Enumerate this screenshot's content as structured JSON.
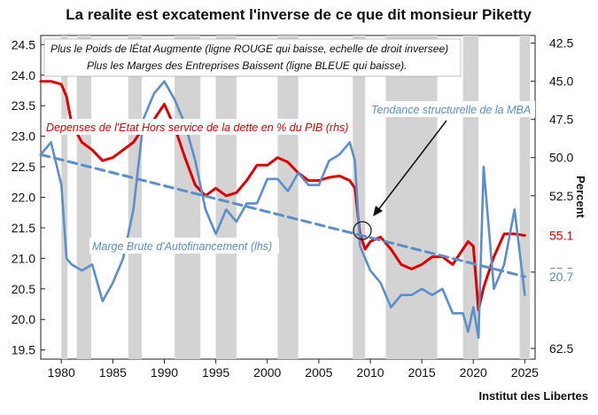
{
  "chart_data": {
    "type": "line",
    "title": "La realite est excatement l'inverse de ce que dit monsieur Piketty",
    "annotation_top_1": "Plus le Poids de lÉtat Augmente (ligne ROUGE qui baisse, echelle de droit inversee)",
    "annotation_top_2": "Plus les Marges des Entreprises Baissent (ligne BLEUE qui baisse).",
    "trend_label": "Tendance structurelle de la MBA",
    "ylabel_right": "Percent",
    "source": "Institut des Libertes",
    "x_ticks": [
      "1980",
      "1985",
      "1990",
      "1995",
      "2000",
      "2005",
      "2010",
      "2015",
      "2020",
      "2025"
    ],
    "y_left_ticks": [
      "24.5",
      "24.0",
      "23.5",
      "23.0",
      "22.5",
      "22.0",
      "21.5",
      "21.0",
      "20.5",
      "20.0",
      "19.5"
    ],
    "y_right_ticks": [
      "42.5",
      "45.0",
      "47.5",
      "50.0",
      "52.5",
      "",
      "57.5",
      "",
      "62.5"
    ],
    "xlim": [
      1978,
      2026
    ],
    "ylim_left": [
      19.35,
      24.65
    ],
    "ylim_right_inverted": [
      42.0,
      63.2
    ],
    "last_value_badges": [
      {
        "text": "55.1",
        "color": "#e00000",
        "value": 55.1
      },
      {
        "text": "20.7",
        "color": "#5b8fc9",
        "value": 20.7
      }
    ],
    "recessions": [
      [
        1980.0,
        1980.6
      ],
      [
        1981.5,
        1982.9
      ],
      [
        1986.5,
        1987.8
      ],
      [
        1991.0,
        1993.5
      ],
      [
        1995.0,
        1997.0
      ],
      [
        2001.0,
        2003.0
      ],
      [
        2008.3,
        2009.5
      ],
      [
        2011.5,
        2016.5
      ],
      [
        2019.0,
        2020.5
      ],
      [
        2024.5,
        2025.5
      ]
    ],
    "series": [
      {
        "name": "Depenses de l'Etat Hors service de la dette en % du PIB (rhs)",
        "axis": "right",
        "color": "#e00000",
        "x": [
          1978,
          1979,
          1980,
          1980.5,
          1981,
          1982,
          1983,
          1984,
          1985,
          1986,
          1987,
          1988,
          1989,
          1990,
          1991,
          1992,
          1993,
          1994,
          1995,
          1996,
          1997,
          1998,
          1999,
          2000,
          2001,
          2002,
          2003,
          2004,
          2005,
          2006,
          2007,
          2008,
          2008.5,
          2009,
          2009.5,
          2010,
          2011,
          2012,
          2013,
          2014,
          2015,
          2016,
          2017,
          2018,
          2019,
          2019.5,
          2020,
          2020.5,
          2021,
          2022,
          2023,
          2024,
          2025
        ],
        "y": [
          45.0,
          45.0,
          45.2,
          46.0,
          47.8,
          49.0,
          49.5,
          50.2,
          50.0,
          49.5,
          49.0,
          48.0,
          47.5,
          46.5,
          48.0,
          50.0,
          51.8,
          52.5,
          52.0,
          52.5,
          52.3,
          51.5,
          50.5,
          50.5,
          50.0,
          50.3,
          51.0,
          51.5,
          51.5,
          51.3,
          51.2,
          51.5,
          52.0,
          55.0,
          56.0,
          55.5,
          55.2,
          56.0,
          57.0,
          57.3,
          57.0,
          56.5,
          56.5,
          57.0,
          56.0,
          55.5,
          55.8,
          60.0,
          58.5,
          56.5,
          55.0,
          55.0,
          55.1
        ]
      },
      {
        "name": "Marge Brute d'Autofinancement (lhs)",
        "axis": "left",
        "color": "#5b8fc9",
        "x": [
          1978,
          1979,
          1980,
          1980.5,
          1981,
          1982,
          1983,
          1984,
          1985,
          1986,
          1987,
          1988,
          1989,
          1990,
          1991,
          1992,
          1993,
          1994,
          1995,
          1996,
          1997,
          1998,
          1999,
          2000,
          2001,
          2002,
          2003,
          2004,
          2005,
          2006,
          2007,
          2008,
          2008.5,
          2009,
          2009.5,
          2010,
          2011,
          2012,
          2013,
          2014,
          2015,
          2016,
          2017,
          2018,
          2019,
          2019.5,
          2020,
          2020.5,
          2021,
          2022,
          2023,
          2024,
          2025
        ],
        "y": [
          22.7,
          22.9,
          22.2,
          21.0,
          20.9,
          20.8,
          20.9,
          20.3,
          20.6,
          21.0,
          21.8,
          23.3,
          23.7,
          23.9,
          23.6,
          23.2,
          22.6,
          21.8,
          21.4,
          21.8,
          21.6,
          21.9,
          21.9,
          22.3,
          22.3,
          22.1,
          22.4,
          22.2,
          22.2,
          22.6,
          22.7,
          22.9,
          22.6,
          21.2,
          21.0,
          20.8,
          20.6,
          20.2,
          20.4,
          20.4,
          20.5,
          20.4,
          20.5,
          20.1,
          20.1,
          19.8,
          20.2,
          19.7,
          22.5,
          20.5,
          20.9,
          21.8,
          20.4
        ]
      },
      {
        "name": "Tendance structurelle de la MBA",
        "axis": "left",
        "color": "#5b8fc9",
        "dashed": true,
        "x": [
          1978,
          2025
        ],
        "y": [
          22.7,
          20.7
        ]
      }
    ]
  }
}
